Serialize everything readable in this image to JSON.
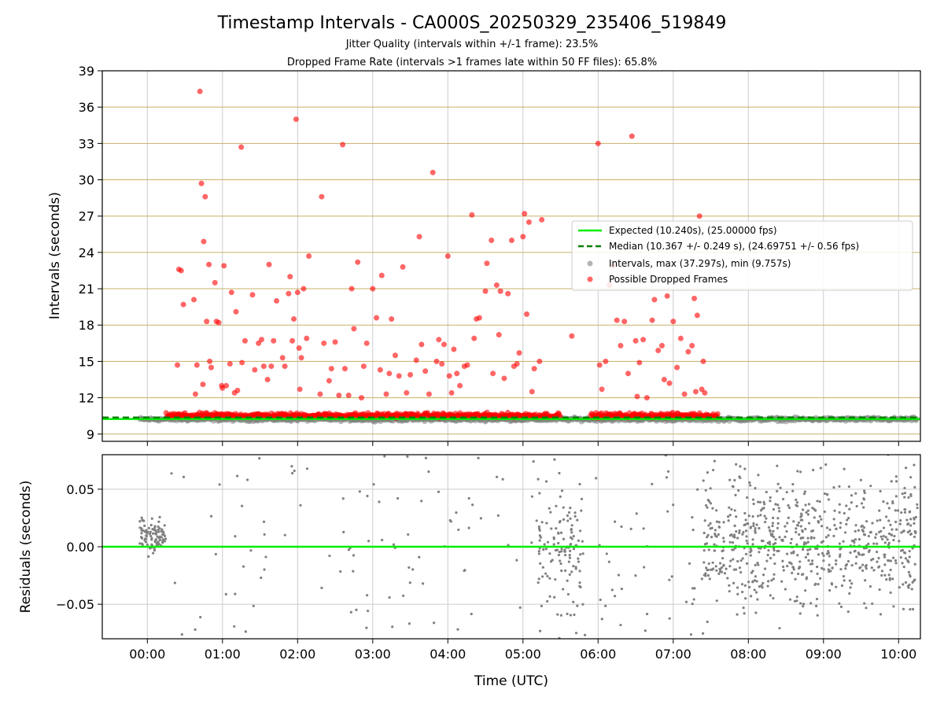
{
  "chart_data": [
    {
      "type": "scatter",
      "title": "Timestamp Intervals - CA000S_20250329_235406_519849",
      "subtitle_lines": [
        "Jitter Quality (intervals within +/-1 frame): 23.5%",
        "Dropped Frame Rate (intervals >1 frames late within 50 FF files): 65.8%"
      ],
      "xlabel": "",
      "ylabel": "Intervals (seconds)",
      "ylim": [
        8.4,
        39
      ],
      "yticks": [
        9,
        12,
        15,
        18,
        21,
        24,
        27,
        30,
        33,
        36,
        39
      ],
      "xlim_hours": [
        -0.6,
        10.25
      ],
      "grid": "on",
      "grid_color": "#c8b068",
      "legend_position": "center-right",
      "expected_value": 10.24,
      "median_value": 10.367,
      "series": [
        {
          "name": "Expected (10.240s), (25.00000 fps)",
          "kind": "hline",
          "color": "#00ee00",
          "value": 10.24
        },
        {
          "name": "Median (10.367 +/- 0.249 s), (24.69751 +/- 0.56 fps)",
          "kind": "dashed-hline",
          "color": "#008000",
          "value": 10.367
        },
        {
          "name": "Intervals, max (37.297s), min (9.757s)",
          "kind": "points",
          "color": "#808080",
          "baseline_band": [
            9.757,
            10.6
          ],
          "time_range_hours": [
            -0.1,
            10.25
          ]
        },
        {
          "name": "Possible Dropped Frames",
          "kind": "points",
          "color": "#ff0000",
          "baseline_band": [
            10.2,
            11.0
          ],
          "active_ranges_hours": [
            [
              0.25,
              5.5
            ],
            [
              5.9,
              7.6
            ]
          ],
          "outliers": [
            [
              0.4,
              14.7
            ],
            [
              0.42,
              22.6
            ],
            [
              0.45,
              22.5
            ],
            [
              0.48,
              19.7
            ],
            [
              0.62,
              20.1
            ],
            [
              0.64,
              12.3
            ],
            [
              0.66,
              14.7
            ],
            [
              0.7,
              37.3
            ],
            [
              0.72,
              29.7
            ],
            [
              0.74,
              13.1
            ],
            [
              0.75,
              24.9
            ],
            [
              0.77,
              28.6
            ],
            [
              0.79,
              18.3
            ],
            [
              0.82,
              23.0
            ],
            [
              0.83,
              15.0
            ],
            [
              0.85,
              14.5
            ],
            [
              0.9,
              21.5
            ],
            [
              0.92,
              18.3
            ],
            [
              0.95,
              18.2
            ],
            [
              0.99,
              13.0
            ],
            [
              1.0,
              12.8
            ],
            [
              1.02,
              22.9
            ],
            [
              1.05,
              13.0
            ],
            [
              1.1,
              14.8
            ],
            [
              1.12,
              20.7
            ],
            [
              1.16,
              12.4
            ],
            [
              1.18,
              19.1
            ],
            [
              1.2,
              12.6
            ],
            [
              1.25,
              32.7
            ],
            [
              1.26,
              14.9
            ],
            [
              1.3,
              16.7
            ],
            [
              1.4,
              20.5
            ],
            [
              1.43,
              14.3
            ],
            [
              1.48,
              16.5
            ],
            [
              1.52,
              16.8
            ],
            [
              1.55,
              14.6
            ],
            [
              1.6,
              13.5
            ],
            [
              1.62,
              23.0
            ],
            [
              1.65,
              14.6
            ],
            [
              1.68,
              16.7
            ],
            [
              1.72,
              20.0
            ],
            [
              1.8,
              15.3
            ],
            [
              1.83,
              14.6
            ],
            [
              1.88,
              20.6
            ],
            [
              1.9,
              22.0
            ],
            [
              1.93,
              16.7
            ],
            [
              1.95,
              18.5
            ],
            [
              1.98,
              35.0
            ],
            [
              2.0,
              20.7
            ],
            [
              2.02,
              16.1
            ],
            [
              2.03,
              12.7
            ],
            [
              2.05,
              15.3
            ],
            [
              2.08,
              21.0
            ],
            [
              2.12,
              16.9
            ],
            [
              2.15,
              23.7
            ],
            [
              2.3,
              12.3
            ],
            [
              2.32,
              28.6
            ],
            [
              2.35,
              16.5
            ],
            [
              2.42,
              13.4
            ],
            [
              2.45,
              14.4
            ],
            [
              2.5,
              16.6
            ],
            [
              2.55,
              12.2
            ],
            [
              2.6,
              32.9
            ],
            [
              2.63,
              14.4
            ],
            [
              2.68,
              12.2
            ],
            [
              2.72,
              21.0
            ],
            [
              2.75,
              17.7
            ],
            [
              2.8,
              23.2
            ],
            [
              2.85,
              12.0
            ],
            [
              2.88,
              14.6
            ],
            [
              2.92,
              16.5
            ],
            [
              3.0,
              21.0
            ],
            [
              3.05,
              18.6
            ],
            [
              3.1,
              14.3
            ],
            [
              3.12,
              22.1
            ],
            [
              3.18,
              12.3
            ],
            [
              3.22,
              14.0
            ],
            [
              3.25,
              18.5
            ],
            [
              3.3,
              15.5
            ],
            [
              3.35,
              13.8
            ],
            [
              3.4,
              22.8
            ],
            [
              3.45,
              12.4
            ],
            [
              3.5,
              13.9
            ],
            [
              3.58,
              15.1
            ],
            [
              3.62,
              25.3
            ],
            [
              3.65,
              16.4
            ],
            [
              3.7,
              14.2
            ],
            [
              3.75,
              12.3
            ],
            [
              3.8,
              30.6
            ],
            [
              3.85,
              15.0
            ],
            [
              3.88,
              16.8
            ],
            [
              3.92,
              14.8
            ],
            [
              3.95,
              16.4
            ],
            [
              4.0,
              23.7
            ],
            [
              4.02,
              13.8
            ],
            [
              4.05,
              12.4
            ],
            [
              4.08,
              16.0
            ],
            [
              4.12,
              14.0
            ],
            [
              4.16,
              13.0
            ],
            [
              4.22,
              14.6
            ],
            [
              4.26,
              14.7
            ],
            [
              4.32,
              27.1
            ],
            [
              4.35,
              16.9
            ],
            [
              4.38,
              18.5
            ],
            [
              4.42,
              18.6
            ],
            [
              4.5,
              20.8
            ],
            [
              4.52,
              23.1
            ],
            [
              4.58,
              25.0
            ],
            [
              4.6,
              14.0
            ],
            [
              4.65,
              21.3
            ],
            [
              4.68,
              17.2
            ],
            [
              4.7,
              20.8
            ],
            [
              4.75,
              13.6
            ],
            [
              4.8,
              20.6
            ],
            [
              4.85,
              25.0
            ],
            [
              4.88,
              14.6
            ],
            [
              4.92,
              14.8
            ],
            [
              4.95,
              15.7
            ],
            [
              5.0,
              25.3
            ],
            [
              5.02,
              27.2
            ],
            [
              5.05,
              18.9
            ],
            [
              5.08,
              26.5
            ],
            [
              5.12,
              12.5
            ],
            [
              5.15,
              14.4
            ],
            [
              5.22,
              15.0
            ],
            [
              5.25,
              26.7
            ],
            [
              5.65,
              17.1
            ],
            [
              6.0,
              33.0
            ],
            [
              6.02,
              14.7
            ],
            [
              6.05,
              12.7
            ],
            [
              6.1,
              15.0
            ],
            [
              6.15,
              21.3
            ],
            [
              6.2,
              22.9
            ],
            [
              6.25,
              18.4
            ],
            [
              6.3,
              16.3
            ],
            [
              6.35,
              18.3
            ],
            [
              6.4,
              14.0
            ],
            [
              6.45,
              33.6
            ],
            [
              6.5,
              16.7
            ],
            [
              6.52,
              12.1
            ],
            [
              6.55,
              14.9
            ],
            [
              6.6,
              16.8
            ],
            [
              6.65,
              12.0
            ],
            [
              6.72,
              18.4
            ],
            [
              6.75,
              20.1
            ],
            [
              6.8,
              15.9
            ],
            [
              6.85,
              16.3
            ],
            [
              6.88,
              13.5
            ],
            [
              6.92,
              20.4
            ],
            [
              6.95,
              13.2
            ],
            [
              7.0,
              18.3
            ],
            [
              7.05,
              14.5
            ],
            [
              7.1,
              16.9
            ],
            [
              7.15,
              12.3
            ],
            [
              7.2,
              15.8
            ],
            [
              7.25,
              16.3
            ],
            [
              7.28,
              20.2
            ],
            [
              7.3,
              12.5
            ],
            [
              7.32,
              18.8
            ],
            [
              7.35,
              27.0
            ],
            [
              7.38,
              12.7
            ],
            [
              7.4,
              15.0
            ],
            [
              7.42,
              12.4
            ]
          ]
        }
      ]
    },
    {
      "type": "scatter",
      "xlabel": "Time (UTC)",
      "ylabel": "Residuals (seconds)",
      "ylim": [
        -0.08,
        0.08
      ],
      "yticks": [
        -0.05,
        0.0,
        0.05
      ],
      "ytick_labels": [
        "−0.05",
        "0.00",
        "0.05"
      ],
      "xticks_hours": [
        0,
        1,
        2,
        3,
        4,
        5,
        6,
        7,
        8,
        9,
        10
      ],
      "xtick_labels": [
        "00:00",
        "01:00",
        "02:00",
        "03:00",
        "04:00",
        "05:00",
        "06:00",
        "07:00",
        "08:00",
        "09:00",
        "10:00"
      ],
      "grid": "on",
      "zero_line_color": "#00ee00",
      "series": [
        {
          "kind": "points",
          "color": "#808080",
          "dense_clusters": [
            {
              "x_hours": [
                -0.1,
                0.25
              ],
              "y_spread": 0.02,
              "center": 0.01,
              "count": 90
            },
            {
              "x_hours": [
                5.2,
                5.8
              ],
              "y_spread": 0.07,
              "center": 0.0,
              "count": 110
            },
            {
              "x_hours": [
                7.4,
                10.25
              ],
              "y_spread": 0.075,
              "center": 0.005,
              "count": 700
            }
          ],
          "sparse_range_hours": [
            0.25,
            7.4
          ],
          "sparse_count": 160
        }
      ]
    }
  ]
}
